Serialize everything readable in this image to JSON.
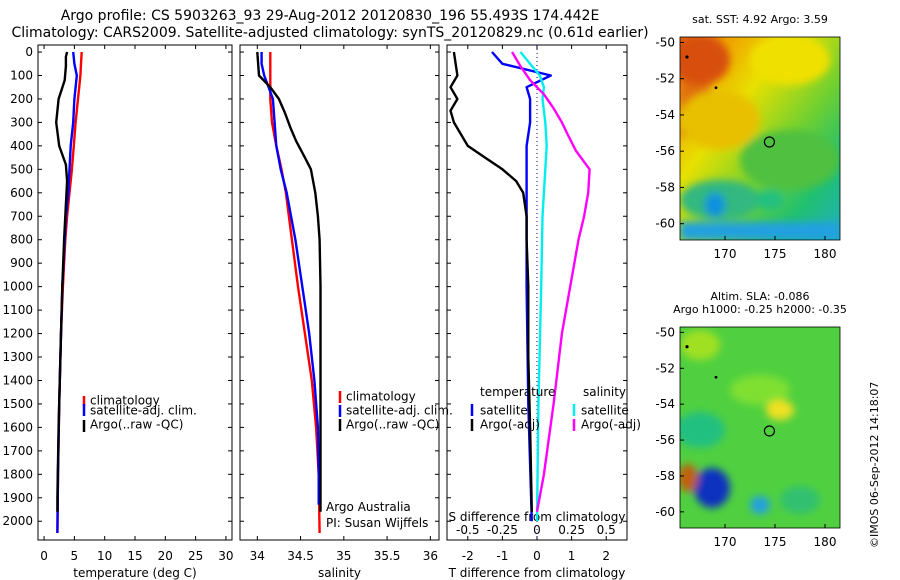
{
  "title": {
    "line1": "Argo profile: CS 5903263_93 29-Aug-2012 20120830_196 55.493S 174.442E",
    "line2": "Climatology: CARS2009. Satellite-adjusted climatology: synTS_20120829.nc (0.61d earlier)"
  },
  "colors": {
    "climatology": "#ff0000",
    "satellite": "#0000ff",
    "argo": "#000000",
    "sat_salinity": "#00eeee",
    "argo_salinity": "#ff00ff"
  },
  "depth_axis": {
    "ticks": [
      0,
      100,
      200,
      300,
      400,
      500,
      600,
      700,
      800,
      900,
      1000,
      1100,
      1200,
      1300,
      1400,
      1500,
      1600,
      1700,
      1800,
      1900,
      2000
    ],
    "max": 2080
  },
  "chart_data": [
    {
      "type": "line",
      "panel": "temperature",
      "xlabel": "temperature (deg C)",
      "ylabel": "depth",
      "xlim": [
        -1,
        31
      ],
      "ylim": [
        2080,
        -30
      ],
      "xticks": [
        0,
        5,
        10,
        15,
        20,
        25,
        30
      ],
      "legend": [
        "climatology",
        "satellite-adj. clim.",
        "Argo(..raw -QC)"
      ],
      "series": [
        {
          "name": "climatology",
          "depth": [
            0,
            50,
            100,
            200,
            300,
            400,
            500,
            600,
            700,
            800,
            1000,
            1200,
            1500,
            1800,
            2050
          ],
          "values": [
            6.2,
            6.1,
            6.0,
            5.6,
            5.2,
            4.9,
            4.6,
            4.2,
            3.8,
            3.5,
            3.1,
            2.8,
            2.5,
            2.3,
            2.2
          ]
        },
        {
          "name": "satellite-adj. clim.",
          "depth": [
            0,
            50,
            100,
            200,
            300,
            400,
            500,
            600,
            700,
            800,
            1000,
            1200,
            1500,
            1800,
            2050
          ],
          "values": [
            4.8,
            5.0,
            5.4,
            5.0,
            4.8,
            4.4,
            4.2,
            4.0,
            3.6,
            3.4,
            3.0,
            2.8,
            2.5,
            2.3,
            2.2
          ]
        },
        {
          "name": "Argo(..raw -QC)",
          "depth": [
            0,
            20,
            60,
            120,
            200,
            300,
            400,
            480,
            550,
            650,
            800,
            1000,
            1300,
            1600,
            1900,
            1960
          ],
          "values": [
            3.8,
            3.6,
            3.6,
            3.4,
            2.4,
            2.0,
            2.5,
            3.6,
            3.8,
            3.6,
            3.3,
            3.0,
            2.7,
            2.4,
            2.2,
            2.2
          ]
        }
      ]
    },
    {
      "type": "line",
      "panel": "salinity",
      "xlabel": "salinity",
      "xlim": [
        33.8,
        36.1
      ],
      "ylim": [
        2080,
        -30
      ],
      "xticks": [
        34,
        34.5,
        35,
        35.5,
        36
      ],
      "legend": [
        "climatology",
        "satellite-adj. clim.",
        "Argo(..raw -QC)"
      ],
      "annotation": [
        "Argo Australia",
        "PI: Susan Wijffels"
      ],
      "series": [
        {
          "name": "climatology",
          "depth": [
            0,
            100,
            200,
            300,
            400,
            500,
            600,
            800,
            1000,
            1200,
            1400,
            1600,
            1800,
            2050
          ],
          "values": [
            34.15,
            34.15,
            34.15,
            34.17,
            34.22,
            34.28,
            34.33,
            34.4,
            34.47,
            34.55,
            34.63,
            34.68,
            34.71,
            34.72
          ]
        },
        {
          "name": "satellite-adj. clim.",
          "depth": [
            0,
            50,
            100,
            150,
            200,
            300,
            400,
            500,
            600,
            800,
            1000,
            1200,
            1400,
            1600,
            1800,
            1930
          ],
          "values": [
            34.05,
            34.05,
            34.08,
            34.13,
            34.18,
            34.2,
            34.22,
            34.27,
            34.34,
            34.44,
            34.52,
            34.6,
            34.66,
            34.7,
            34.71,
            34.71
          ]
        },
        {
          "name": "Argo(..raw -QC)",
          "depth": [
            0,
            100,
            150,
            200,
            260,
            320,
            380,
            450,
            500,
            600,
            700,
            800,
            1000,
            1200,
            1400,
            1600,
            1800,
            1960
          ],
          "values": [
            34.0,
            34.02,
            34.15,
            34.25,
            34.32,
            34.38,
            34.45,
            34.55,
            34.62,
            34.67,
            34.7,
            34.72,
            34.73,
            34.73,
            34.73,
            34.73,
            34.73,
            34.73
          ]
        }
      ]
    },
    {
      "type": "line",
      "panel": "difference",
      "xlabel": "T difference from climatology",
      "xlabel_top": "S difference from climatology",
      "xlim": [
        -2.6,
        2.6
      ],
      "xticks": [
        -2,
        -1,
        0,
        1,
        2
      ],
      "xticks_top": [
        "-0.5",
        "-0.25",
        "0",
        "0.25",
        "0.5"
      ],
      "ylim": [
        2080,
        -30
      ],
      "legend_left_title": "temperature",
      "legend_right_title": "salinity",
      "legend": [
        "satellite",
        "Argo(-adj)",
        "satellite",
        "Argo(-adj)"
      ],
      "series": [
        {
          "name": "temperature satellite",
          "depth": [
            0,
            50,
            100,
            150,
            200,
            300,
            400,
            600,
            800,
            1000,
            1500,
            2000
          ],
          "values": [
            -1.3,
            -1.0,
            0.4,
            -0.3,
            -0.2,
            -0.2,
            -0.3,
            -0.3,
            -0.3,
            -0.3,
            -0.25,
            -0.15
          ]
        },
        {
          "name": "temperature Argo(-adj)",
          "depth": [
            0,
            100,
            150,
            200,
            250,
            300,
            400,
            450,
            500,
            550,
            600,
            700,
            800,
            1000,
            1300,
            1600,
            1960
          ],
          "values": [
            -2.4,
            -2.3,
            -2.5,
            -2.3,
            -2.5,
            -2.4,
            -2.0,
            -1.5,
            -1.0,
            -0.6,
            -0.4,
            -0.3,
            -0.3,
            -0.25,
            -0.25,
            -0.2,
            -0.15
          ]
        },
        {
          "name": "salinity satellite",
          "depth": [
            0,
            50,
            100,
            150,
            200,
            300,
            400,
            500,
            700,
            1000,
            1500,
            2000
          ],
          "values": [
            -0.12,
            -0.05,
            0.02,
            0.05,
            0.04,
            0.06,
            0.07,
            0.06,
            0.04,
            0.03,
            0.01,
            0.0
          ]
        },
        {
          "name": "salinity Argo(-adj)",
          "depth": [
            0,
            60,
            120,
            180,
            240,
            300,
            350,
            420,
            500,
            600,
            700,
            800,
            1000,
            1200,
            1500,
            1800,
            1960
          ],
          "values": [
            -0.18,
            -0.12,
            -0.05,
            0.05,
            0.12,
            0.18,
            0.22,
            0.28,
            0.38,
            0.37,
            0.34,
            0.3,
            0.24,
            0.18,
            0.12,
            0.05,
            0.0
          ]
        }
      ]
    },
    {
      "type": "heatmap",
      "panel": "sst",
      "title": "sat. SST: 4.92 Argo: 3.59",
      "xticks": [
        170,
        175,
        180
      ],
      "yticks": [
        -50,
        -52,
        -54,
        -56,
        -58,
        -60
      ],
      "xlim": [
        165.5,
        181.5
      ],
      "ylim": [
        -60.9,
        -49.7
      ],
      "marker": {
        "lon": 174.442,
        "lat": -55.493
      }
    },
    {
      "type": "heatmap",
      "panel": "sla",
      "title": "Altim. SLA: -0.086",
      "subtitle": "Argo h1000: -0.25 h2000: -0.35",
      "xticks": [
        170,
        175,
        180
      ],
      "yticks": [
        -50,
        -52,
        -54,
        -56,
        -58,
        -60
      ],
      "xlim": [
        165.5,
        181.5
      ],
      "ylim": [
        -60.9,
        -49.7
      ],
      "marker": {
        "lon": 174.442,
        "lat": -55.493
      }
    }
  ],
  "credit": "©IMOS 06-Sep-2012 14:18:07"
}
